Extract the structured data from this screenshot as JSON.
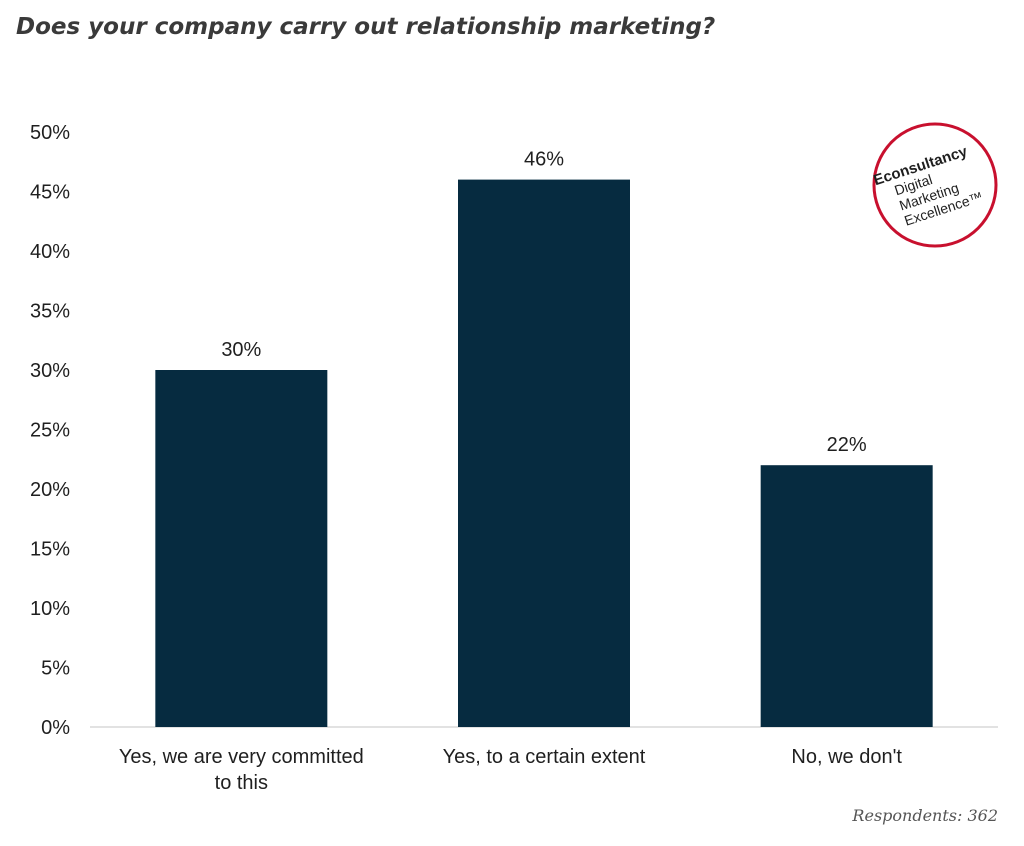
{
  "chart_data": {
    "type": "bar",
    "title": "Does your company carry out relationship marketing?",
    "categories": [
      [
        "Yes, we are very committed",
        "to this"
      ],
      [
        "Yes, to a certain extent"
      ],
      [
        "No, we don't"
      ]
    ],
    "values": [
      30,
      46,
      22
    ],
    "data_labels": [
      "30%",
      "46%",
      "22%"
    ],
    "ylim": [
      0,
      50
    ],
    "y_ticks": [
      0,
      5,
      10,
      15,
      20,
      25,
      30,
      35,
      40,
      45,
      50
    ],
    "y_tick_labels": [
      "0%",
      "5%",
      "10%",
      "15%",
      "20%",
      "25%",
      "30%",
      "35%",
      "40%",
      "45%",
      "50%"
    ],
    "grid": false,
    "bar_color": "#062b40",
    "footnote": "Respondents: 362"
  },
  "logo": {
    "brand": "Econsultancy",
    "lines": [
      "Digital",
      "Marketing",
      "Excellence™"
    ],
    "color": "#c8102e"
  }
}
